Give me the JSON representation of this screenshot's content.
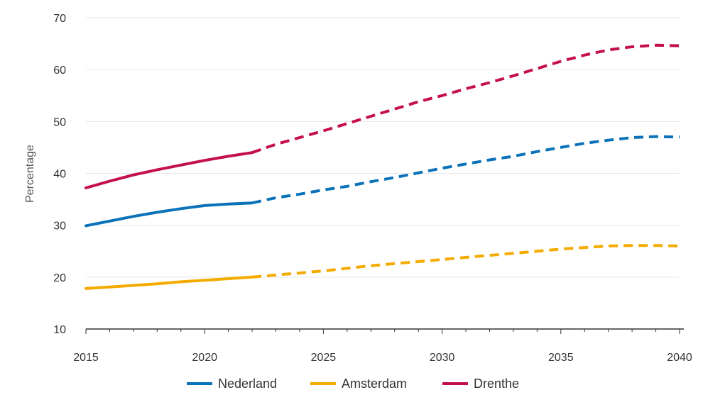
{
  "chart_data": {
    "type": "line",
    "title": "",
    "xlabel": "",
    "ylabel": "Percentage",
    "xlim": [
      2015,
      2040
    ],
    "ylim": [
      10,
      70
    ],
    "x_ticks": [
      2015,
      2020,
      2025,
      2030,
      2035,
      2040
    ],
    "y_ticks": [
      10,
      20,
      30,
      40,
      50,
      60,
      70
    ],
    "grid": "horizontal",
    "legend_position": "bottom",
    "projection_start": 2022,
    "x": [
      2015,
      2016,
      2017,
      2018,
      2019,
      2020,
      2021,
      2022,
      2023,
      2024,
      2025,
      2026,
      2027,
      2028,
      2029,
      2030,
      2031,
      2032,
      2033,
      2034,
      2035,
      2036,
      2037,
      2038,
      2039,
      2040
    ],
    "series": [
      {
        "name": "Nederland",
        "color": "#0a72b9",
        "values": [
          29.9,
          30.8,
          31.7,
          32.5,
          33.2,
          33.8,
          34.1,
          34.3,
          35.3,
          36.0,
          36.8,
          37.5,
          38.4,
          39.2,
          40.1,
          41.0,
          41.8,
          42.6,
          43.3,
          44.2,
          45.0,
          45.8,
          46.4,
          46.9,
          47.1,
          47.0
        ]
      },
      {
        "name": "Amsterdam",
        "color": "#f4ab00",
        "values": [
          17.8,
          18.1,
          18.4,
          18.7,
          19.1,
          19.4,
          19.7,
          20.0,
          20.4,
          20.8,
          21.2,
          21.7,
          22.2,
          22.6,
          23.0,
          23.4,
          23.8,
          24.2,
          24.6,
          25.0,
          25.4,
          25.7,
          26.0,
          26.1,
          26.1,
          26.0
        ]
      },
      {
        "name": "Drenthe",
        "color": "#c40f4d",
        "values": [
          37.2,
          38.5,
          39.7,
          40.7,
          41.6,
          42.5,
          43.3,
          44.0,
          45.6,
          46.9,
          48.2,
          49.6,
          51.0,
          52.4,
          53.8,
          55.0,
          56.3,
          57.5,
          58.8,
          60.2,
          61.6,
          62.8,
          63.8,
          64.4,
          64.7,
          64.6
        ]
      }
    ]
  }
}
